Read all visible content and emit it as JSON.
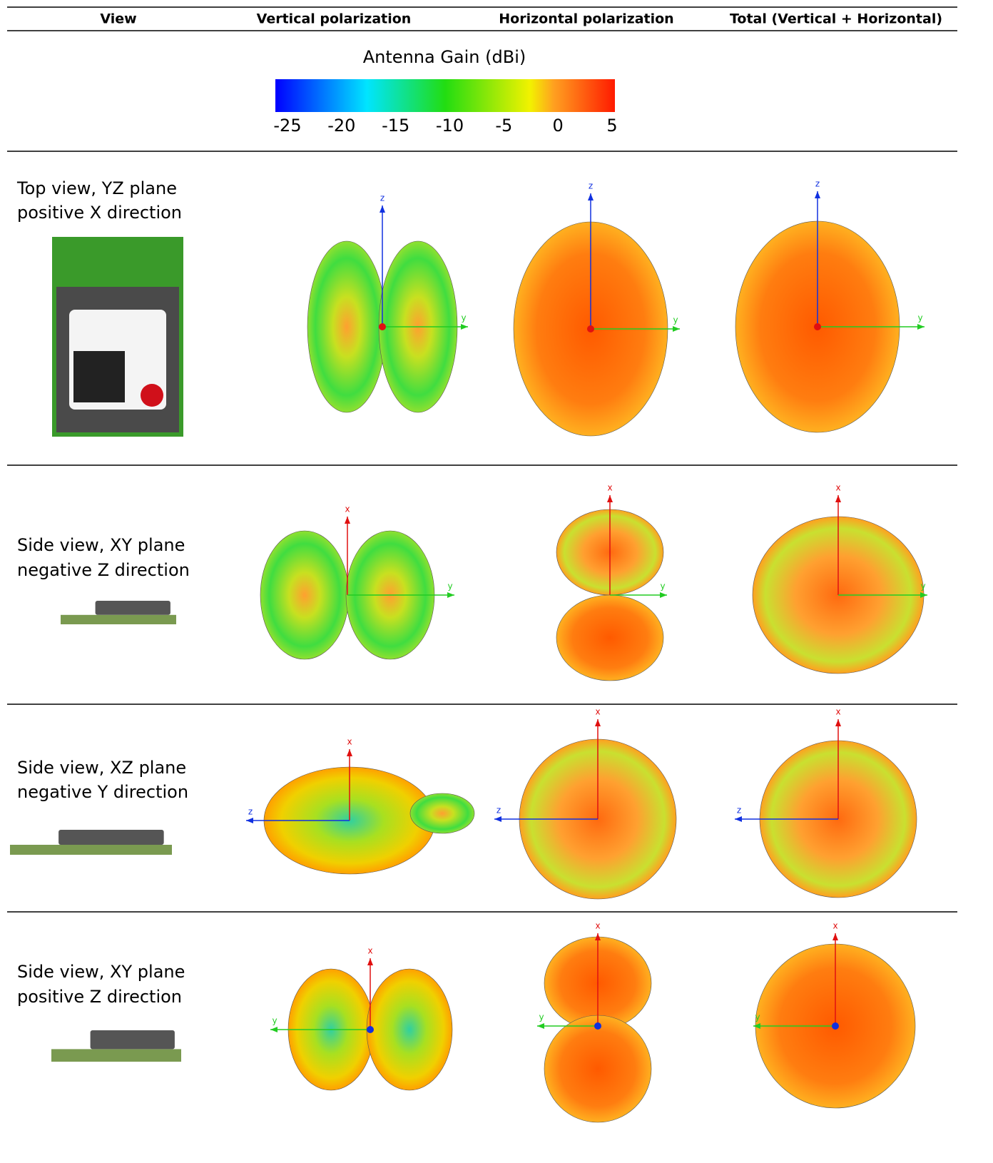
{
  "table": {
    "headers": [
      "View",
      "Vertical polarization",
      "Horizontal polarization",
      "Total (Vertical + Horizontal)"
    ],
    "legend": {
      "title": "Antenna Gain (dBi)",
      "ticks": [
        -25,
        -20,
        -15,
        -10,
        -5,
        0,
        5
      ]
    },
    "rows": [
      {
        "view": [
          "Top view, YZ plane",
          "positive X direction"
        ],
        "axes": [
          [
            "z",
            "y"
          ],
          [
            "z",
            "y"
          ],
          [
            "z",
            "y"
          ]
        ]
      },
      {
        "view": [
          "Side view, XY plane",
          "negative Z direction"
        ],
        "axes": [
          [
            "x",
            "y"
          ],
          [
            "x",
            "y"
          ],
          [
            "x",
            "y"
          ]
        ]
      },
      {
        "view": [
          "Side view, XZ plane",
          "negative Y direction"
        ],
        "axes": [
          [
            "x",
            "z"
          ],
          [
            "x",
            "z"
          ],
          [
            "x",
            "z"
          ]
        ]
      },
      {
        "view": [
          "Side view, XY plane",
          "positive Z direction"
        ],
        "axes": [
          [
            "x",
            "y"
          ],
          [
            "x",
            "y"
          ],
          [
            "x",
            "y"
          ]
        ]
      }
    ]
  }
}
